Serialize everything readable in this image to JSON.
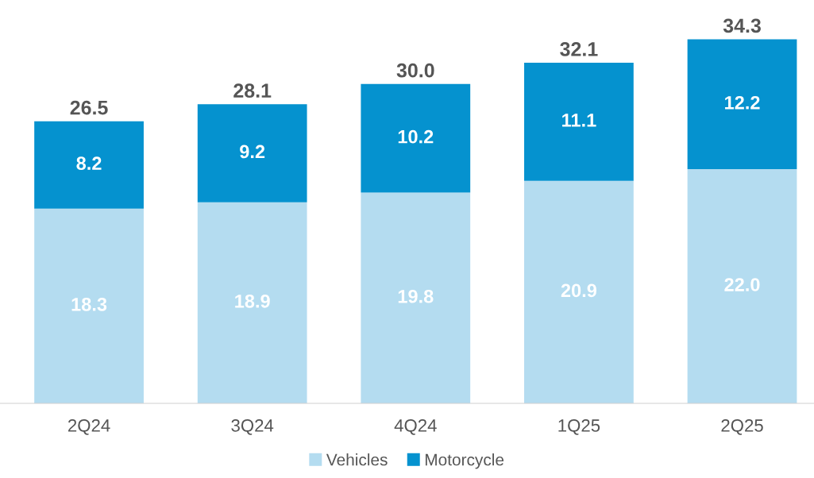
{
  "chart_data": {
    "type": "bar",
    "stacked": true,
    "categories": [
      "2Q24",
      "3Q24",
      "4Q24",
      "1Q25",
      "2Q25"
    ],
    "series": [
      {
        "name": "Vehicles",
        "color": "#b4dcf0",
        "values": [
          18.3,
          18.9,
          19.8,
          20.9,
          22.0
        ],
        "value_labels": [
          "18.3",
          "18.9",
          "19.8",
          "20.9",
          "22.0"
        ]
      },
      {
        "name": "Motorcycle",
        "color": "#0592cf",
        "values": [
          8.2,
          9.2,
          10.2,
          11.1,
          12.2
        ],
        "value_labels": [
          "8.2",
          "9.2",
          "10.2",
          "11.1",
          "12.2"
        ]
      }
    ],
    "totals": [
      "26.5",
      "28.1",
      "30.0",
      "32.1",
      "34.3"
    ],
    "legend": "bottom",
    "grid": false
  }
}
